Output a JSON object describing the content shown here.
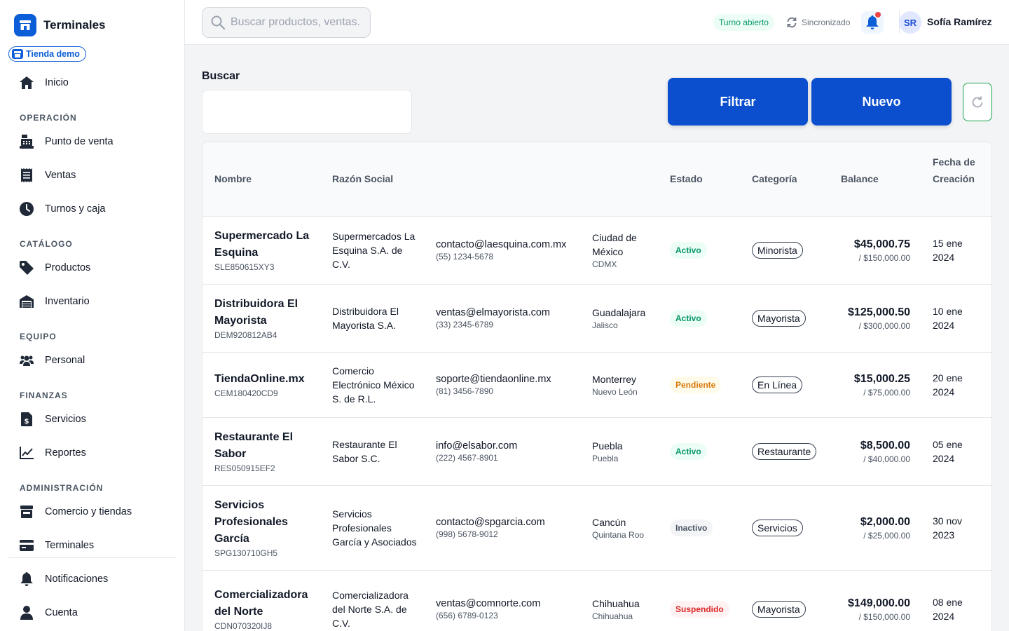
{
  "sidebar": {
    "brand": "Terminales",
    "store_badge": "Tienda demo",
    "home": "Inicio",
    "sections": {
      "operacion": "OPERACIÓN",
      "catalogo": "CATÁLOGO",
      "equipo": "EQUIPO",
      "finanzas": "FINANZAS",
      "administracion": "ADMINISTRACIÓN"
    },
    "items": {
      "pos": "Punto de venta",
      "ventas": "Ventas",
      "turnos": "Turnos y caja",
      "productos": "Productos",
      "inventario": "Inventario",
      "personal": "Personal",
      "servicios": "Servicios",
      "reportes": "Reportes",
      "comercio": "Comercio y tiendas",
      "terminales": "Terminales",
      "notificaciones": "Notificaciones",
      "cuenta": "Cuenta"
    }
  },
  "topbar": {
    "search_placeholder": "Buscar productos, ventas...",
    "shift_status": "Turno abierto",
    "sync_status": "Sincronizado",
    "user_initials": "SR",
    "user_name": "Sofía Ramírez"
  },
  "main": {
    "search_label": "Buscar",
    "search_value": "",
    "filter_button": "Filtrar",
    "new_button": "Nuevo"
  },
  "table": {
    "headers": {
      "name": "Nombre",
      "razon": "Razón Social",
      "status": "Estado",
      "category": "Categoría",
      "balance": "Balance",
      "date": "Fecha de Creación"
    },
    "rows": [
      {
        "name": "Supermercado La Esquina",
        "rfc": "SLE850615XY3",
        "razon": "Supermercados La Esquina S.A. de C.V.",
        "email": "contacto@laesquina.com.mx",
        "phone": "(55) 1234-5678",
        "city": "Ciudad de México",
        "state": "CDMX",
        "status": "Activo",
        "category": "Minorista",
        "balance": "$45,000.75",
        "limit": "/ $150,000.00",
        "date": "15 ene 2024"
      },
      {
        "name": "Distribuidora El Mayorista",
        "rfc": "DEM920812AB4",
        "razon": "Distribuidora El Mayorista S.A.",
        "email": "ventas@elmayorista.com",
        "phone": "(33) 2345-6789",
        "city": "Guadalajara",
        "state": "Jalisco",
        "status": "Activo",
        "category": "Mayorista",
        "balance": "$125,000.50",
        "limit": "/ $300,000.00",
        "date": "10 ene 2024"
      },
      {
        "name": "TiendaOnline.mx",
        "rfc": "CEM180420CD9",
        "razon": "Comercio Electrónico México S. de R.L.",
        "email": "soporte@tiendaonline.mx",
        "phone": "(81) 3456-7890",
        "city": "Monterrey",
        "state": "Nuevo León",
        "status": "Pendiente",
        "category": "En Línea",
        "balance": "$15,000.25",
        "limit": "/ $75,000.00",
        "date": "20 ene 2024"
      },
      {
        "name": "Restaurante El Sabor",
        "rfc": "RES050915EF2",
        "razon": "Restaurante El Sabor S.C.",
        "email": "info@elsabor.com",
        "phone": "(222) 4567-8901",
        "city": "Puebla",
        "state": "Puebla",
        "status": "Activo",
        "category": "Restaurante",
        "balance": "$8,500.00",
        "limit": "/ $40,000.00",
        "date": "05 ene 2024"
      },
      {
        "name": "Servicios Profesionales García",
        "rfc": "SPG130710GH5",
        "razon": "Servicios Profesionales García y Asociados",
        "email": "contacto@spgarcia.com",
        "phone": "(998) 5678-9012",
        "city": "Cancún",
        "state": "Quintana Roo",
        "status": "Inactivo",
        "category": "Servicios",
        "balance": "$2,000.00",
        "limit": "/ $25,000.00",
        "date": "30 nov 2023"
      },
      {
        "name": "Comercializadora del Norte",
        "rfc": "CDN070320IJ8",
        "razon": "Comercializadora del Norte S.A. de C.V.",
        "email": "ventas@comnorte.com",
        "phone": "(656) 6789-0123",
        "city": "Chihuahua",
        "state": "Chihuahua",
        "status": "Suspendido",
        "category": "Mayorista",
        "balance": "$149,000.00",
        "limit": "/ $150,000.00",
        "date": "08 ene 2024"
      }
    ]
  }
}
